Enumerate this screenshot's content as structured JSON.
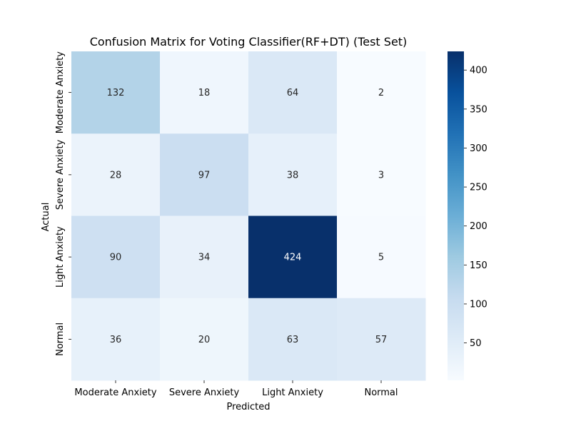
{
  "chart_data": {
    "type": "heatmap",
    "title": "Confusion Matrix for Voting Classifier(RF+DT) (Test Set)",
    "xlabel": "Predicted",
    "ylabel": "Actual",
    "x_categories": [
      "Moderate Anxiety",
      "Severe Anxiety",
      "Light Anxiety",
      "Normal"
    ],
    "y_categories": [
      "Moderate Anxiety",
      "Severe Anxiety",
      "Light Anxiety",
      "Normal"
    ],
    "values": [
      [
        132,
        18,
        64,
        2
      ],
      [
        28,
        97,
        38,
        3
      ],
      [
        90,
        34,
        424,
        5
      ],
      [
        36,
        20,
        63,
        57
      ]
    ],
    "colormap": "Blues",
    "colorbar": {
      "min": 2,
      "max": 424,
      "ticks": [
        50,
        100,
        150,
        200,
        250,
        300,
        350,
        400
      ]
    },
    "annotation_colors": {
      "dark_text": "#262626",
      "light_text": "#ffffff"
    }
  }
}
